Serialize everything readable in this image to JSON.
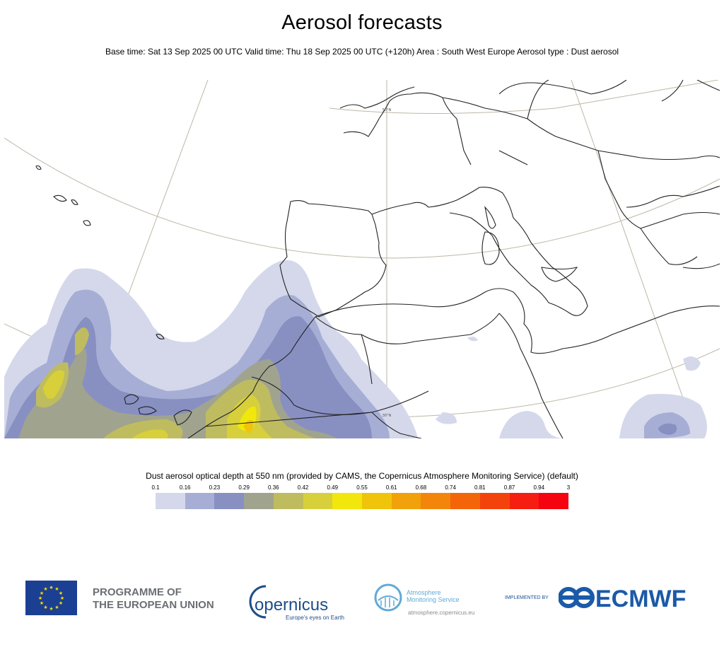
{
  "header": {
    "title": "Aerosol forecasts",
    "subtitle": "Base time: Sat 13 Sep 2025 00 UTC Valid time: Thu 18 Sep 2025 00 UTC (+120h) Area : South West Europe Aerosol type : Dust aerosol"
  },
  "map": {
    "lat_labels": [
      "50°N",
      "30°N"
    ]
  },
  "legend": {
    "title": "Dust aerosol optical depth at 550 nm (provided by CAMS, the Copernicus Atmosphere Monitoring Service) (default)",
    "ticks": [
      "0.1",
      "0.16",
      "0.23",
      "0.29",
      "0.36",
      "0.42",
      "0.49",
      "0.55",
      "0.61",
      "0.68",
      "0.74",
      "0.81",
      "0.87",
      "0.94",
      "3"
    ],
    "colors": [
      "#d4d8ea",
      "#a7aed5",
      "#8890c2",
      "#a0a48e",
      "#bfbc60",
      "#d7d03a",
      "#f1e70c",
      "#f0c40b",
      "#f1a10a",
      "#f3860a",
      "#f4650a",
      "#f4420d",
      "#f51e10",
      "#f50410"
    ]
  },
  "footer": {
    "eu_line1": "PROGRAMME OF",
    "eu_line2": "THE EUROPEAN UNION",
    "copernicus_name": "opernicus",
    "copernicus_tagline": "Europe's eyes on Earth",
    "cams_line1": "Atmosphere",
    "cams_line2": "Monitoring Service",
    "cams_url": "atmosphere.copernicus.eu",
    "implemented_by": "IMPLEMENTED BY",
    "ecmwf": "ECMWF"
  }
}
